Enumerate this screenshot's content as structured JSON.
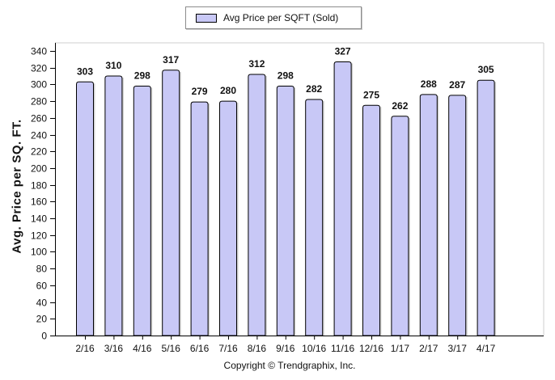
{
  "legend": {
    "label": "Avg Price per SQFT (Sold)"
  },
  "copyright": "Copyright © Trendgraphix, Inc.",
  "colors": {
    "bar_fill": "#c8c8f6",
    "bar_stroke": "#000000",
    "axis": "#000000"
  },
  "chart_data": {
    "type": "bar",
    "categories": [
      "2/16",
      "3/16",
      "4/16",
      "5/16",
      "6/16",
      "7/16",
      "8/16",
      "9/16",
      "10/16",
      "11/16",
      "12/16",
      "1/17",
      "2/17",
      "3/17",
      "4/17"
    ],
    "series": [
      {
        "name": "Avg Price per SQFT (Sold)",
        "values": [
          303,
          310,
          298,
          317,
          279,
          280,
          312,
          298,
          282,
          327,
          275,
          262,
          288,
          287,
          305
        ]
      }
    ],
    "ylabel": "Avg. Price per SQ. FT.",
    "xlabel": "",
    "ylim": [
      0,
      340
    ],
    "yticks": [
      0,
      20,
      40,
      60,
      80,
      100,
      120,
      140,
      160,
      180,
      200,
      220,
      240,
      260,
      280,
      300,
      320,
      340
    ],
    "grid": false,
    "legend_position": "top-center"
  }
}
